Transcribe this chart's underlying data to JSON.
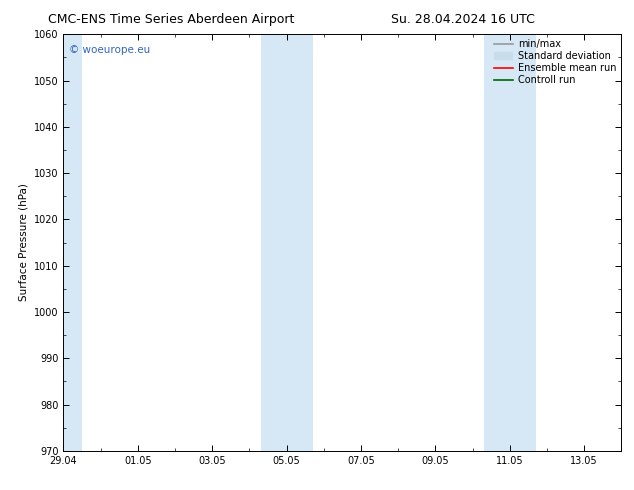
{
  "title_left": "CMC-ENS Time Series Aberdeen Airport",
  "title_right": "Su. 28.04.2024 16 UTC",
  "ylabel": "Surface Pressure (hPa)",
  "ylim": [
    970,
    1060
  ],
  "yticks": [
    970,
    980,
    990,
    1000,
    1010,
    1020,
    1030,
    1040,
    1050,
    1060
  ],
  "xtick_labels": [
    "29.04",
    "01.05",
    "03.05",
    "05.05",
    "07.05",
    "09.05",
    "11.05",
    "13.05"
  ],
  "xtick_positions": [
    0,
    2,
    4,
    6,
    8,
    10,
    12,
    14
  ],
  "xlim": [
    0,
    15
  ],
  "shaded_bands": [
    {
      "start": 0.0,
      "end": 0.5
    },
    {
      "start": 5.3,
      "end": 6.7
    },
    {
      "start": 11.3,
      "end": 12.7
    }
  ],
  "shaded_color": "#d6e8f5",
  "watermark_text": "© woeurope.eu",
  "watermark_color": "#3366bb",
  "legend_entries": [
    {
      "label": "min/max",
      "color": "#999999",
      "lw": 1.2,
      "style": "line"
    },
    {
      "label": "Standard deviation",
      "color": "#c8dcea",
      "lw": 6,
      "style": "thick"
    },
    {
      "label": "Ensemble mean run",
      "color": "#ff0000",
      "lw": 1.2,
      "style": "line"
    },
    {
      "label": "Controll run",
      "color": "#006600",
      "lw": 1.2,
      "style": "line"
    }
  ],
  "background_color": "#ffffff",
  "title_fontsize": 9,
  "label_fontsize": 7.5,
  "tick_fontsize": 7,
  "legend_fontsize": 7,
  "watermark_fontsize": 7.5
}
